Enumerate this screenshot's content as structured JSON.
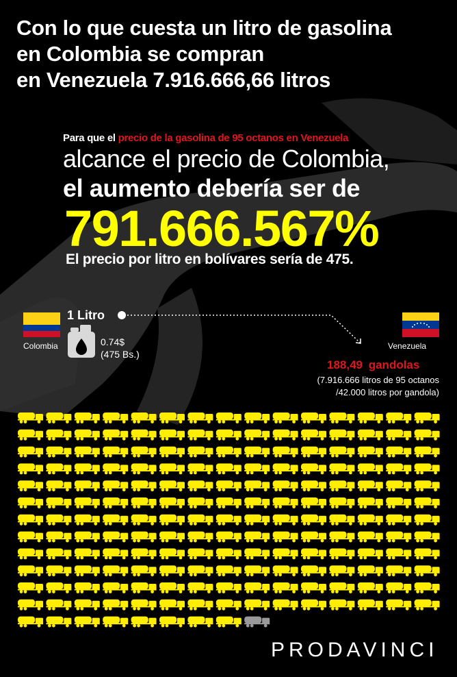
{
  "title": {
    "line1": "Con lo que cuesta un litro de gasolina",
    "line2": "en Colombia se compran",
    "line3": "en Venezuela 7.916.666,66 litros"
  },
  "headline": {
    "lead_prefix": "Para que el ",
    "lead_highlight": "precio de la gasolina de 95 octanos en Venezuela",
    "line2": "alcance el precio de Colombia,",
    "line3": "el aumento debería ser de",
    "percent": "791.666.567%",
    "line5": "El precio por litro en bolívares sería de 475."
  },
  "comparison": {
    "colombia_label": "Colombia",
    "venezuela_label": "Venezuela",
    "liter_label": "1 Litro",
    "price_usd": "0.74$",
    "price_bs": "(475 Bs.)",
    "gandolas": "188,49 gandolas",
    "note_line1": "(7.916.666 litros de 95 octanos",
    "note_line2": "/42.000 litros por gandola)"
  },
  "colors": {
    "highlight_red": "#e0161e",
    "accent_yellow": "#ffff00",
    "truck_yellow": "#ffee00",
    "partial_truck_gray": "#9a9a9a",
    "flag_yellow": "#fcd116",
    "flag_blue": "#003893",
    "flag_red": "#ce1126"
  },
  "icons": {
    "fuel_canister": "fuel-canister-icon",
    "truck": "tanker-truck-icon"
  },
  "trucks": {
    "per_row": 15,
    "rows": 13,
    "full_count": 188,
    "partial_fraction": 0.49
  },
  "brand": "PRODAVINCI"
}
